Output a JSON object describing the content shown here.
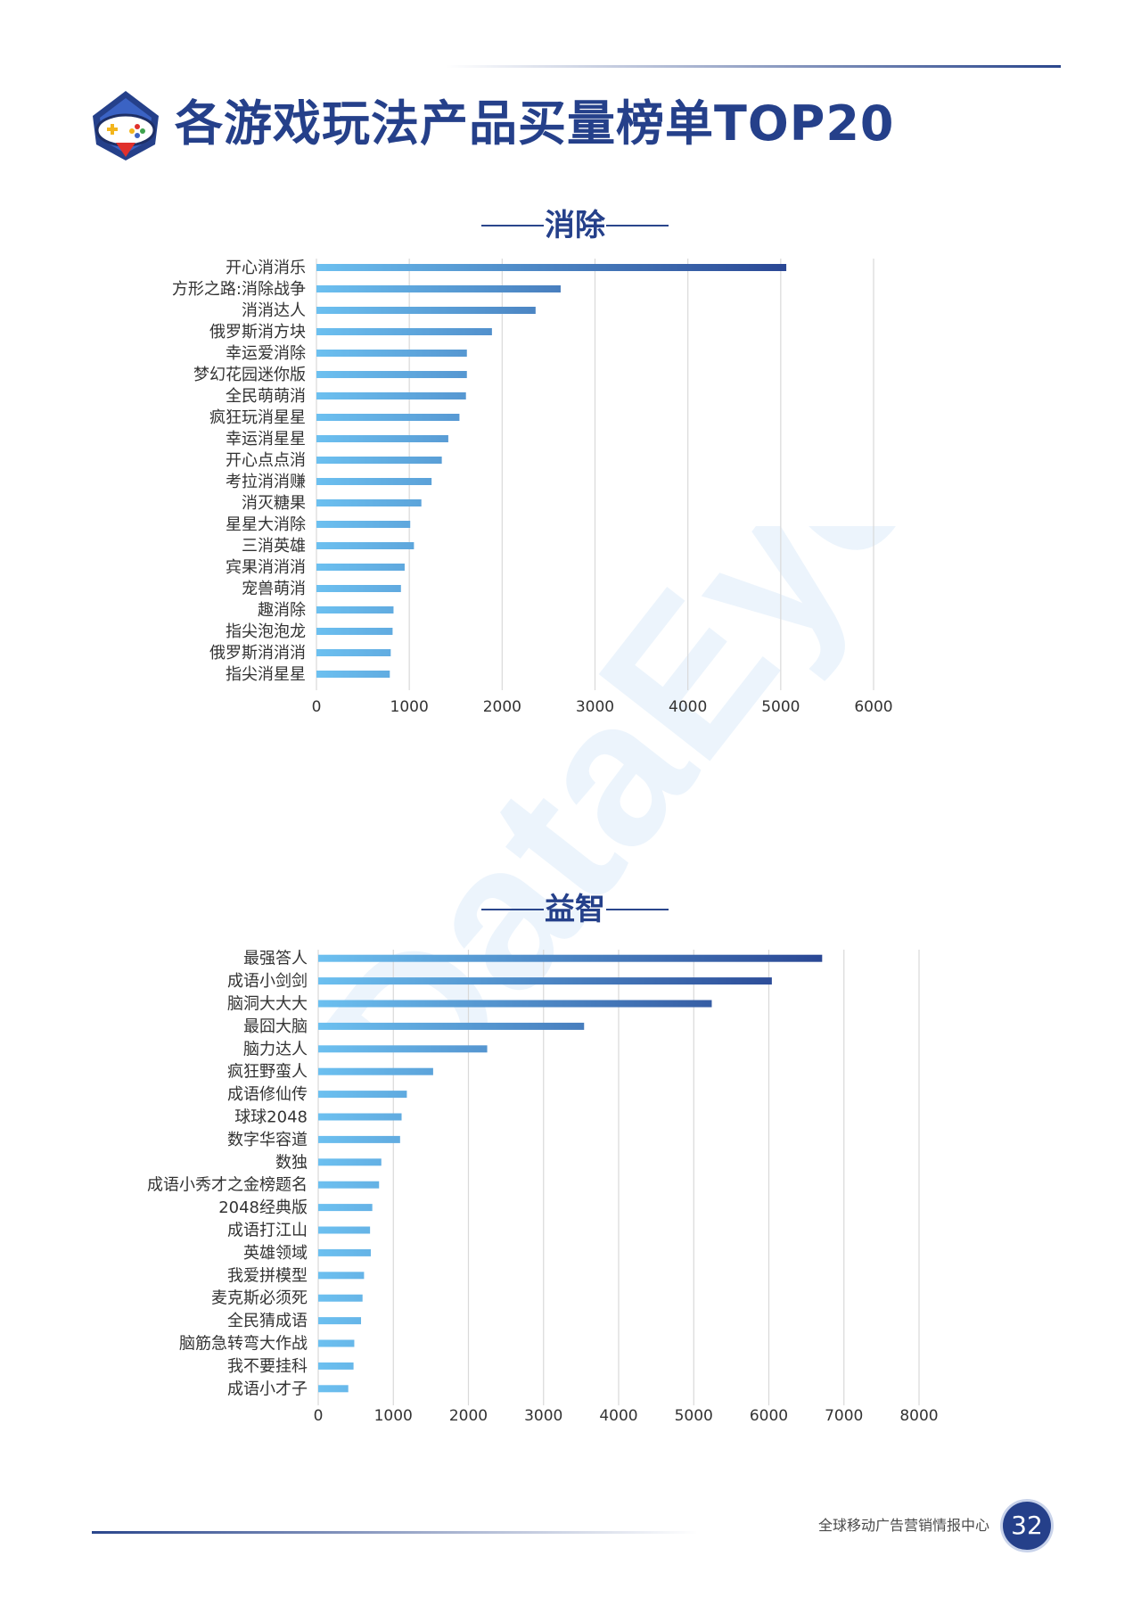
{
  "header": {
    "title": "各游戏玩法产品买量榜单TOP20"
  },
  "colors": {
    "brand": "#25408a",
    "bar_light": "#6cc0f0",
    "bar_dark": "#2a4794",
    "grid": "#d9d9d9"
  },
  "footer": {
    "org": "全球移动广告营销情报中心",
    "page": "32"
  },
  "watermark": {
    "text": "DataEye"
  },
  "chart_data": [
    {
      "type": "bar",
      "orientation": "horizontal",
      "title": "消除",
      "categories": [
        "开心消消乐",
        "方形之路:消除战争",
        "消消达人",
        "俄罗斯消方块",
        "幸运爱消除",
        "梦幻花园迷你版",
        "全民萌萌消",
        "疯狂玩消星星",
        "幸运消星星",
        "开心点点消",
        "考拉消消赚",
        "消灭糖果",
        "星星大消除",
        "三消英雄",
        "宾果消消消",
        "宠兽萌消",
        "趣消除",
        "指尖泡泡龙",
        "俄罗斯消消消",
        "指尖消星星"
      ],
      "values": [
        5060,
        2630,
        2360,
        1890,
        1620,
        1620,
        1610,
        1540,
        1420,
        1350,
        1240,
        1130,
        1010,
        1050,
        950,
        910,
        830,
        820,
        800,
        790
      ],
      "xlim": [
        0,
        6000
      ],
      "xticks": [
        0,
        1000,
        2000,
        3000,
        4000,
        5000,
        6000
      ],
      "grid": true
    },
    {
      "type": "bar",
      "orientation": "horizontal",
      "title": "益智",
      "categories": [
        "最强答人",
        "成语小剑剑",
        "脑洞大大大",
        "最囧大脑",
        "脑力达人",
        "疯狂野蛮人",
        "成语修仙传",
        "球球2048",
        "数字华容道",
        "数独",
        "成语小秀才之金榜题名",
        "2048经典版",
        "成语打江山",
        "英雄领域",
        "我爱拼模型",
        "麦克斯必须死",
        "全民猜成语",
        "脑筋急转弯大作战",
        "我不要挂科",
        "成语小才子"
      ],
      "values": [
        6710,
        6040,
        5240,
        3540,
        2250,
        1530,
        1180,
        1110,
        1090,
        840,
        810,
        720,
        690,
        700,
        610,
        590,
        570,
        480,
        470,
        400
      ],
      "xlim": [
        0,
        8000
      ],
      "xticks": [
        0,
        1000,
        2000,
        3000,
        4000,
        5000,
        6000,
        7000,
        8000
      ],
      "grid": true
    }
  ]
}
